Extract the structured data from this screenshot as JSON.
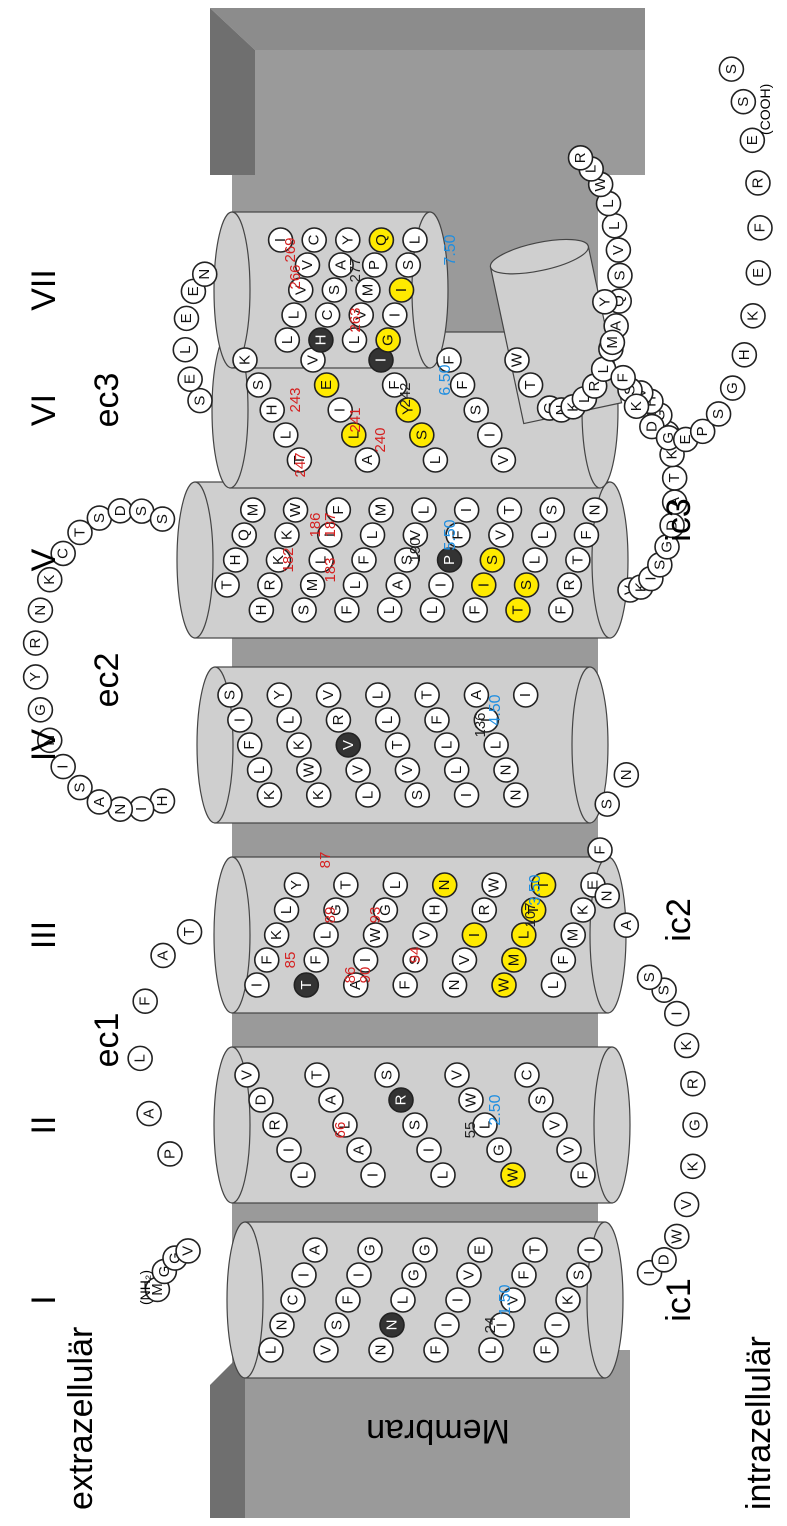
{
  "labels": {
    "membrane": "Membran",
    "extracellular": "extrazellulär",
    "intracellular": "intrazellulär",
    "nh2": "(NH₂)",
    "cooh": "(COOH)"
  },
  "helices": [
    "I",
    "II",
    "III",
    "IV",
    "V",
    "VI",
    "VII"
  ],
  "loops": {
    "ec": [
      "ec1",
      "ec2",
      "ec3"
    ],
    "ic": [
      "ic1",
      "ic2",
      "ic3"
    ]
  },
  "numbers": {
    "red": [
      "66",
      "85",
      "86",
      "87",
      "89",
      "90",
      "93",
      "94",
      "182",
      "183",
      "186",
      "187",
      "240",
      "241",
      "243",
      "247",
      "263",
      "266",
      "269"
    ],
    "dark": [
      "24",
      "55",
      "107",
      "136",
      "190",
      "242",
      "277"
    ],
    "blue": [
      "1.50",
      "2.50",
      "3.50",
      "4.50",
      "5.50",
      "6.50",
      "7.50"
    ]
  },
  "colors": {
    "highlight": "#ffea00",
    "key": "#333333",
    "membrane": "#9a9a9a",
    "helix": "#cfcfcf",
    "red": "#d42020",
    "blue": "#1f8ee0"
  },
  "sequence": {
    "nterm": [
      "M",
      "G",
      "G",
      "V"
    ],
    "tm1": [
      "I",
      "S",
      "K",
      "I",
      "F",
      "T",
      "F",
      "V",
      "I",
      "L",
      "E",
      "V",
      "I",
      "I",
      "F",
      "G",
      "G",
      "L",
      "N",
      "N",
      "G",
      "I",
      "F",
      "S",
      "V",
      "A",
      "I",
      "C",
      "N",
      "L"
    ],
    "ic1": [
      "I",
      "D",
      "W",
      "V",
      "K",
      "G",
      "R",
      "K",
      "I",
      "S",
      "S"
    ],
    "tm2": [
      "V",
      "D",
      "R",
      "I",
      "L",
      "T",
      "A",
      "L",
      "A",
      "I",
      "S",
      "R",
      "S",
      "I",
      "L",
      "V",
      "W",
      "L",
      "G",
      "W",
      "C",
      "S",
      "V",
      "V",
      "F"
    ],
    "ec1": [
      "P",
      "A",
      "L",
      "F",
      "A",
      "T"
    ],
    "tm3": [
      "E",
      "K",
      "M",
      "F",
      "L",
      "T",
      "T",
      "L",
      "M",
      "W",
      "W",
      "R",
      "I",
      "V",
      "N",
      "N",
      "H",
      "V",
      "S",
      "F",
      "L",
      "G",
      "W",
      "I",
      "A",
      "T",
      "G",
      "L",
      "F",
      "T",
      "Y",
      "L",
      "K",
      "F",
      "I"
    ],
    "ic2": [
      "A",
      "N",
      "F",
      "S",
      "N"
    ],
    "tm4": [
      "S",
      "I",
      "F",
      "L",
      "K",
      "Y",
      "L",
      "K",
      "W",
      "K",
      "V",
      "R",
      "V",
      "V",
      "L",
      "L",
      "L",
      "T",
      "V",
      "S",
      "T",
      "F",
      "L",
      "L",
      "I",
      "A",
      "I",
      "L",
      "N",
      "N",
      "I"
    ],
    "ec2": [
      "H",
      "I",
      "N",
      "A",
      "S",
      "I",
      "N",
      "G",
      "Y",
      "R",
      "N",
      "K",
      "C",
      "T",
      "S",
      "D",
      "S",
      "S"
    ],
    "tm5": [
      "N",
      "F",
      "T",
      "R",
      "F",
      "S",
      "L",
      "L",
      "S",
      "T",
      "T",
      "V",
      "S",
      "I",
      "F",
      "I",
      "F",
      "P",
      "I",
      "L",
      "L",
      "V",
      "S",
      "A",
      "L",
      "M",
      "L",
      "F",
      "L",
      "F",
      "F",
      "I",
      "L",
      "M",
      "S",
      "W",
      "K",
      "K",
      "R",
      "H",
      "M",
      "Q",
      "H",
      "T"
    ],
    "ic3": [
      "V",
      "K",
      "I",
      "S",
      "G",
      "D",
      "A",
      "T",
      "K",
      "R",
      "G",
      "H",
      "V",
      "S"
    ],
    "tm6": [
      "K",
      "S",
      "H",
      "L",
      "T",
      "V",
      "E",
      "I",
      "L",
      "A",
      "I",
      "F",
      "Y",
      "S",
      "L",
      "F",
      "F",
      "S",
      "I",
      "V",
      "W",
      "T"
    ],
    "ec3": [
      "S",
      "E",
      "L",
      "E",
      "E",
      "N"
    ],
    "tm7": [
      "L",
      "S",
      "I",
      "I",
      "G",
      "Q",
      "P",
      "M",
      "V",
      "L",
      "Y",
      "A",
      "S",
      "C",
      "H",
      "C",
      "V",
      "V",
      "L",
      "L",
      "I"
    ],
    "h8": [
      "G",
      "N",
      "K",
      "L",
      "R",
      "L",
      "S",
      "A",
      "Q",
      "S",
      "V",
      "L",
      "L",
      "W",
      "L",
      "R"
    ],
    "cterm": [
      "Y",
      "M",
      "F",
      "K",
      "D",
      "G",
      "E",
      "P",
      "S",
      "G",
      "H",
      "K",
      "E",
      "F",
      "R",
      "E",
      "S",
      "S"
    ]
  }
}
